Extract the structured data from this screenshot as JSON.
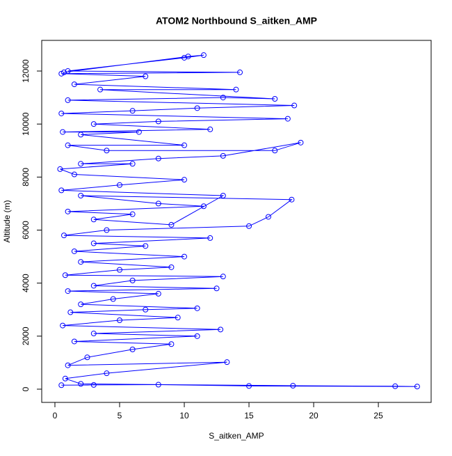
{
  "chart_data": {
    "type": "line",
    "title": "ATOM2 Northbound S_aitken_AMP",
    "x_label": "S_aitken_AMP",
    "y_label": "Altitude (m)",
    "color": "#0000ff",
    "markers": true,
    "x": [
      0.5,
      3,
      8,
      15,
      28,
      26.3,
      18.4,
      2,
      0.8,
      4,
      13.3,
      1,
      2.5,
      6,
      9,
      1.5,
      11,
      3,
      12.8,
      0.6,
      5,
      9.5,
      1.2,
      7,
      11,
      2,
      4.5,
      8,
      1,
      12.5,
      3,
      6,
      13,
      0.8,
      5,
      9,
      2,
      10,
      1.5,
      7,
      3,
      12,
      0.7,
      4,
      15,
      16.5,
      18.3,
      2,
      8,
      11.5,
      1,
      6,
      3,
      9,
      13,
      0.5,
      5,
      10,
      1.5,
      0.4,
      6,
      2,
      8,
      13,
      19,
      17,
      4,
      1,
      10,
      2,
      6.5,
      0.6,
      12,
      3,
      8,
      18,
      0.5,
      6,
      11,
      18.5,
      1,
      13,
      17,
      3.5,
      14,
      1.5,
      7,
      0.5,
      14.3,
      1,
      10,
      11.5,
      10.3,
      0.7
    ],
    "values": [
      150,
      160,
      170,
      120,
      100,
      110,
      130,
      200,
      400,
      600,
      1020,
      900,
      1200,
      1500,
      1700,
      1800,
      2000,
      2100,
      2250,
      2400,
      2600,
      2700,
      2900,
      3000,
      3050,
      3200,
      3400,
      3600,
      3700,
      3800,
      3900,
      4100,
      4250,
      4300,
      4500,
      4600,
      4800,
      5000,
      5200,
      5400,
      5500,
      5700,
      5800,
      6000,
      6150,
      6500,
      7150,
      7300,
      7000,
      6900,
      6700,
      6600,
      6400,
      6200,
      7300,
      7500,
      7700,
      7900,
      8100,
      8300,
      8500,
      8500,
      8700,
      8800,
      9300,
      9000,
      9000,
      9200,
      9200,
      9600,
      9700,
      9700,
      9800,
      10000,
      10100,
      10200,
      10400,
      10500,
      10600,
      10700,
      10900,
      11000,
      10950,
      11300,
      11300,
      11500,
      11800,
      11900,
      11950,
      12000,
      12500,
      12600,
      12550,
      11950
    ],
    "xlim": [
      -1.02,
      29.08
    ],
    "ylim": [
      -499,
      13156
    ],
    "xticks": [
      0,
      5,
      10,
      15,
      20,
      25
    ],
    "yticks": [
      0,
      2000,
      4000,
      6000,
      8000,
      10000,
      12000
    ]
  }
}
